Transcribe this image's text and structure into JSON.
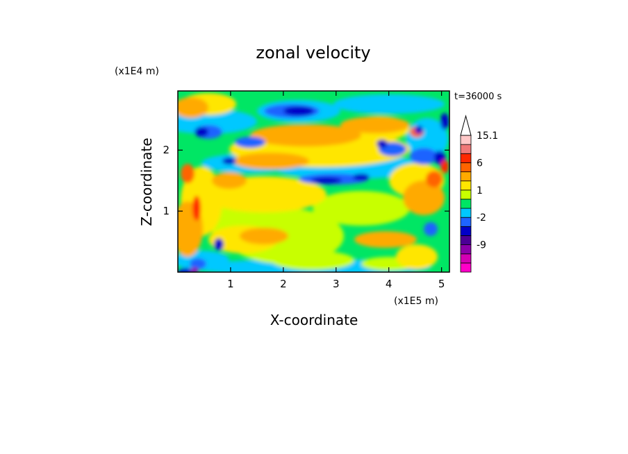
{
  "chart_data": {
    "type": "heatmap",
    "title": "zonal velocity",
    "xlabel": "X-coordinate",
    "ylabel": "Z-coordinate",
    "x_scale_label": "(x1E5 m)",
    "y_scale_label": "(x1E4 m)",
    "time_label": "t=36000 s",
    "x_ticks": [
      "1",
      "2",
      "3",
      "4",
      "5"
    ],
    "y_ticks": [
      "1",
      "2"
    ],
    "xlim": [
      0,
      5.15
    ],
    "ylim": [
      0,
      2.97
    ],
    "colorbar": {
      "labels": [
        "15.1",
        "6",
        "1",
        "-2",
        "-9"
      ],
      "levels": [
        -15,
        -12,
        -9,
        -6,
        -4,
        -2,
        -1,
        0,
        1,
        2,
        4,
        6,
        9,
        12,
        15.1
      ],
      "colors": [
        "#ff00c8",
        "#d400b4",
        "#8c00aa",
        "#4b0096",
        "#0000c8",
        "#1e64ff",
        "#00c8ff",
        "#00e664",
        "#c8ff00",
        "#ffe600",
        "#ffaa00",
        "#ff6400",
        "#ff2800",
        "#f07878",
        "#ffc8c8"
      ]
    }
  }
}
